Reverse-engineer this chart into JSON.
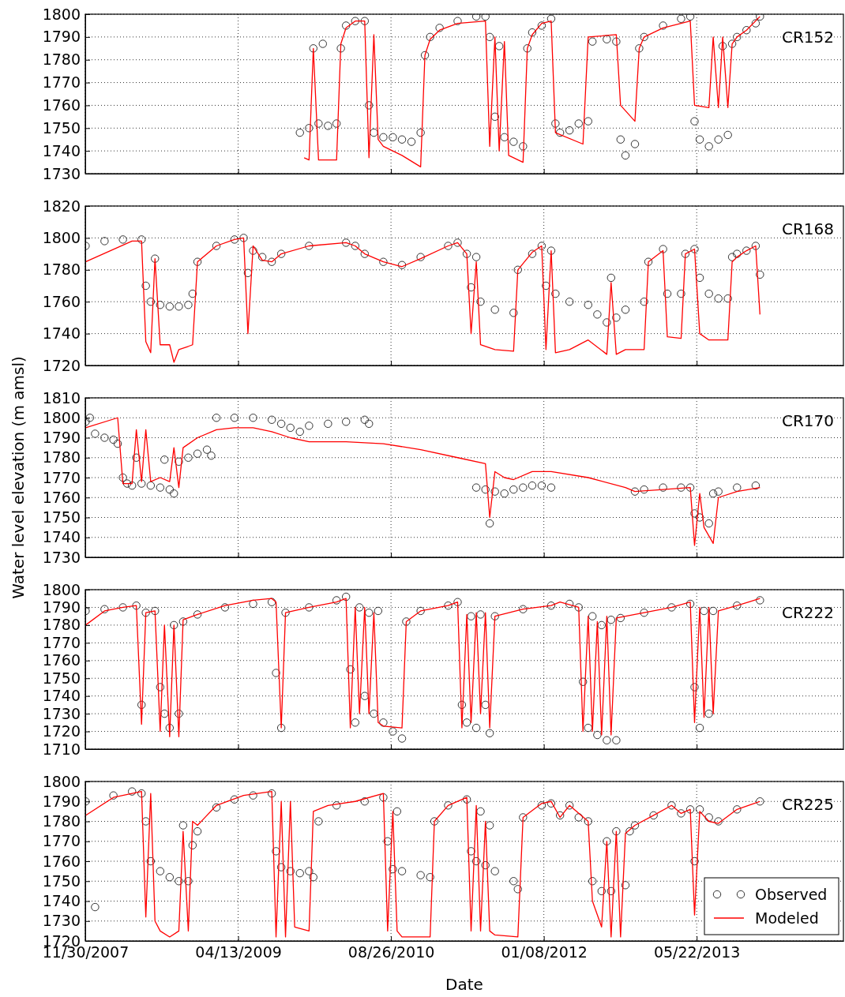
{
  "chart_data": [
    {
      "type": "line",
      "title": "CR152",
      "xlim": [
        "2007-11-30",
        "2014-09-14"
      ],
      "xticks": [
        {
          "value": "2007-11-30",
          "label": null
        },
        {
          "value": "2009-04-13",
          "label": null
        },
        {
          "value": "2010-08-26",
          "label": null
        },
        {
          "value": "2012-01-08",
          "label": null
        },
        {
          "value": "2013-05-22",
          "label": null
        }
      ],
      "ylim": [
        1730,
        1800
      ],
      "yticks": [
        1730,
        1740,
        1750,
        1760,
        1770,
        1780,
        1790,
        1800
      ],
      "grid": true,
      "tick_labels": "y",
      "legend": false,
      "series": [
        {
          "type": "scatter",
          "marker": "circle",
          "color": "#333333",
          "x": [
            "2009-11-01",
            "2009-12-01",
            "2009-12-15",
            "2010-01-01",
            "2010-01-15",
            "2010-02-01",
            "2010-03-01",
            "2010-03-15",
            "2010-04-01",
            "2010-05-01",
            "2010-06-01",
            "2010-06-15",
            "2010-07-01",
            "2010-08-01",
            "2010-09-01",
            "2010-10-01",
            "2010-11-01",
            "2010-12-01",
            "2010-12-15",
            "2011-01-01",
            "2011-02-01",
            "2011-04-01",
            "2011-06-01",
            "2011-07-01",
            "2011-07-15",
            "2011-08-01",
            "2011-08-15",
            "2011-09-01",
            "2011-10-01",
            "2011-11-01",
            "2011-11-15",
            "2011-12-01",
            "2012-01-01",
            "2012-02-01",
            "2012-02-15",
            "2012-03-01",
            "2012-04-01",
            "2012-05-01",
            "2012-06-01",
            "2012-06-15",
            "2012-08-01",
            "2012-09-01",
            "2012-09-15",
            "2012-10-01",
            "2012-11-01",
            "2012-11-15",
            "2012-12-01",
            "2013-02-01",
            "2013-04-01",
            "2013-05-01",
            "2013-05-15",
            "2013-06-01",
            "2013-07-01",
            "2013-08-01",
            "2013-08-15",
            "2013-09-01",
            "2013-09-15",
            "2013-10-01",
            "2013-11-01",
            "2013-12-01",
            "2013-12-15"
          ],
          "values": [
            1748,
            1750,
            1785,
            1752,
            1787,
            1751,
            1752,
            1785,
            1795,
            1797,
            1797,
            1760,
            1748,
            1746,
            1746,
            1745,
            1744,
            1748,
            1782,
            1790,
            1794,
            1797,
            1799,
            1799,
            1790,
            1755,
            1786,
            1746,
            1744,
            1742,
            1785,
            1792,
            1795,
            1798,
            1752,
            1748,
            1749,
            1752,
            1753,
            1788,
            1789,
            1788,
            1745,
            1738,
            1743,
            1785,
            1790,
            1795,
            1798,
            1799,
            1753,
            1745,
            1742,
            1745,
            1786,
            1747,
            1787,
            1790,
            1793,
            1796,
            1799
          ]
        },
        {
          "type": "line",
          "line_style": "solid",
          "color": "#ff0000",
          "x": [
            "2009-11-15",
            "2009-12-01",
            "2009-12-15",
            "2010-01-01",
            "2010-03-01",
            "2010-03-15",
            "2010-04-01",
            "2010-05-01",
            "2010-06-01",
            "2010-06-15",
            "2010-07-01",
            "2010-07-15",
            "2010-08-01",
            "2010-10-01",
            "2010-12-01",
            "2010-12-15",
            "2011-01-01",
            "2011-02-01",
            "2011-04-01",
            "2011-07-01",
            "2011-07-15",
            "2011-08-01",
            "2011-08-15",
            "2011-09-01",
            "2011-09-15",
            "2011-11-01",
            "2011-11-15",
            "2011-12-01",
            "2012-01-01",
            "2012-02-01",
            "2012-02-15",
            "2012-05-15",
            "2012-06-01",
            "2012-09-01",
            "2012-09-15",
            "2012-11-01",
            "2012-11-15",
            "2012-12-01",
            "2013-02-01",
            "2013-05-01",
            "2013-05-15",
            "2013-07-01",
            "2013-07-15",
            "2013-08-01",
            "2013-08-15",
            "2013-09-01",
            "2013-09-15",
            "2013-10-01",
            "2013-11-01",
            "2013-12-15"
          ],
          "values": [
            1737,
            1736,
            1785,
            1736,
            1736,
            1787,
            1794,
            1797,
            1797,
            1737,
            1791,
            1745,
            1742,
            1738,
            1733,
            1782,
            1789,
            1793,
            1796,
            1797,
            1742,
            1790,
            1740,
            1788,
            1738,
            1735,
            1785,
            1791,
            1796,
            1797,
            1748,
            1743,
            1790,
            1791,
            1760,
            1753,
            1785,
            1790,
            1794,
            1797,
            1760,
            1759,
            1790,
            1759,
            1790,
            1759,
            1787,
            1790,
            1793,
            1799
          ]
        }
      ]
    },
    {
      "type": "line",
      "title": "CR168",
      "xlim": [
        "2007-11-30",
        "2014-09-14"
      ],
      "xticks": [
        {
          "value": "2007-11-30",
          "label": null
        },
        {
          "value": "2009-04-13",
          "label": null
        },
        {
          "value": "2010-08-26",
          "label": null
        },
        {
          "value": "2012-01-08",
          "label": null
        },
        {
          "value": "2013-05-22",
          "label": null
        }
      ],
      "ylim": [
        1720,
        1820
      ],
      "yticks": [
        1720,
        1740,
        1760,
        1780,
        1800,
        1820
      ],
      "grid": true,
      "tick_labels": "y",
      "legend": false,
      "series": [
        {
          "type": "scatter",
          "marker": "circle",
          "color": "#333333",
          "x": [
            "2007-12-01",
            "2008-02-01",
            "2008-04-01",
            "2008-06-01",
            "2008-06-15",
            "2008-07-01",
            "2008-07-15",
            "2008-08-01",
            "2008-09-01",
            "2008-10-01",
            "2008-11-01",
            "2008-11-15",
            "2008-12-01",
            "2009-02-01",
            "2009-04-01",
            "2009-05-01",
            "2009-05-15",
            "2009-06-01",
            "2009-07-01",
            "2009-08-01",
            "2009-09-01",
            "2009-12-01",
            "2010-04-01",
            "2010-05-01",
            "2010-06-01",
            "2010-08-01",
            "2010-10-01",
            "2010-12-01",
            "2011-03-01",
            "2011-04-01",
            "2011-05-01",
            "2011-05-15",
            "2011-06-01",
            "2011-06-15",
            "2011-08-01",
            "2011-10-01",
            "2011-10-15",
            "2011-12-01",
            "2012-01-01",
            "2012-01-15",
            "2012-02-01",
            "2012-02-15",
            "2012-04-01",
            "2012-06-01",
            "2012-07-01",
            "2012-08-01",
            "2012-08-15",
            "2012-09-01",
            "2012-10-01",
            "2012-12-01",
            "2012-12-15",
            "2013-02-01",
            "2013-02-15",
            "2013-04-01",
            "2013-04-15",
            "2013-05-15",
            "2013-06-01",
            "2013-07-01",
            "2013-08-01",
            "2013-09-01",
            "2013-09-15",
            "2013-10-01",
            "2013-11-01",
            "2013-12-01",
            "2013-12-15"
          ],
          "values": [
            1795,
            1798,
            1799,
            1799,
            1770,
            1760,
            1787,
            1758,
            1757,
            1757,
            1758,
            1765,
            1785,
            1795,
            1799,
            1800,
            1778,
            1792,
            1788,
            1785,
            1790,
            1795,
            1797,
            1795,
            1790,
            1785,
            1783,
            1788,
            1795,
            1797,
            1790,
            1769,
            1788,
            1760,
            1755,
            1753,
            1780,
            1790,
            1795,
            1770,
            1792,
            1765,
            1760,
            1758,
            1752,
            1747,
            1775,
            1750,
            1755,
            1760,
            1785,
            1793,
            1765,
            1765,
            1790,
            1793,
            1775,
            1765,
            1762,
            1762,
            1788,
            1790,
            1792,
            1795,
            1777
          ]
        },
        {
          "type": "line",
          "line_style": "solid",
          "color": "#ff0000",
          "x": [
            "2007-12-01",
            "2008-05-01",
            "2008-06-01",
            "2008-06-15",
            "2008-07-01",
            "2008-07-15",
            "2008-08-01",
            "2008-09-01",
            "2008-09-15",
            "2008-10-01",
            "2008-11-01",
            "2008-11-15",
            "2008-12-01",
            "2009-02-01",
            "2009-04-01",
            "2009-05-01",
            "2009-05-15",
            "2009-06-01",
            "2009-07-01",
            "2009-08-01",
            "2009-09-01",
            "2009-12-01",
            "2010-04-01",
            "2010-05-01",
            "2010-06-01",
            "2010-08-01",
            "2010-10-01",
            "2010-12-01",
            "2011-03-01",
            "2011-04-01",
            "2011-05-01",
            "2011-05-15",
            "2011-06-01",
            "2011-06-15",
            "2011-08-01",
            "2011-10-01",
            "2011-10-15",
            "2011-12-01",
            "2012-01-01",
            "2012-01-15",
            "2012-02-01",
            "2012-02-15",
            "2012-04-01",
            "2012-06-01",
            "2012-08-01",
            "2012-08-15",
            "2012-09-01",
            "2012-10-01",
            "2012-12-01",
            "2012-12-15",
            "2013-02-01",
            "2013-02-15",
            "2013-04-01",
            "2013-04-15",
            "2013-05-15",
            "2013-06-01",
            "2013-07-01",
            "2013-09-01",
            "2013-09-15",
            "2013-10-01",
            "2013-11-01",
            "2013-12-01",
            "2013-12-15"
          ],
          "values": [
            1785,
            1798,
            1798,
            1735,
            1728,
            1787,
            1733,
            1733,
            1722,
            1730,
            1732,
            1733,
            1785,
            1795,
            1799,
            1800,
            1740,
            1795,
            1786,
            1785,
            1790,
            1795,
            1797,
            1795,
            1790,
            1785,
            1782,
            1787,
            1795,
            1797,
            1790,
            1740,
            1785,
            1733,
            1730,
            1729,
            1780,
            1791,
            1795,
            1730,
            1792,
            1728,
            1730,
            1736,
            1727,
            1772,
            1727,
            1730,
            1730,
            1785,
            1792,
            1738,
            1737,
            1790,
            1793,
            1740,
            1736,
            1736,
            1785,
            1788,
            1792,
            1795,
            1752
          ]
        }
      ]
    },
    {
      "type": "line",
      "title": "CR170",
      "ylabel": "Water level elevation (m amsl)",
      "xlim": [
        "2007-11-30",
        "2014-09-14"
      ],
      "xticks": [
        {
          "value": "2007-11-30",
          "label": null
        },
        {
          "value": "2009-04-13",
          "label": null
        },
        {
          "value": "2010-08-26",
          "label": null
        },
        {
          "value": "2012-01-08",
          "label": null
        },
        {
          "value": "2013-05-22",
          "label": null
        }
      ],
      "ylim": [
        1730,
        1810
      ],
      "yticks": [
        1730,
        1740,
        1750,
        1760,
        1770,
        1780,
        1790,
        1800,
        1810
      ],
      "grid": true,
      "tick_labels": "y",
      "legend": false,
      "series": [
        {
          "type": "scatter",
          "marker": "circle",
          "color": "#333333",
          "x": [
            "2007-12-01",
            "2007-12-15",
            "2008-01-01",
            "2008-02-01",
            "2008-03-01",
            "2008-03-15",
            "2008-04-01",
            "2008-04-15",
            "2008-05-01",
            "2008-05-15",
            "2008-06-01",
            "2008-07-01",
            "2008-08-01",
            "2008-08-15",
            "2008-09-01",
            "2008-09-15",
            "2008-10-01",
            "2008-11-01",
            "2008-12-01",
            "2009-01-01",
            "2009-01-15",
            "2009-02-01",
            "2009-04-01",
            "2009-06-01",
            "2009-08-01",
            "2009-09-01",
            "2009-10-01",
            "2009-11-01",
            "2009-12-01",
            "2010-02-01",
            "2010-04-01",
            "2010-06-01",
            "2010-06-15",
            "2011-06-01",
            "2011-07-01",
            "2011-07-15",
            "2011-08-01",
            "2011-09-01",
            "2011-10-01",
            "2011-11-01",
            "2011-12-01",
            "2012-01-01",
            "2012-02-01",
            "2012-11-01",
            "2012-12-01",
            "2013-02-01",
            "2013-04-01",
            "2013-05-01",
            "2013-05-15",
            "2013-06-01",
            "2013-07-01",
            "2013-07-15",
            "2013-08-01",
            "2013-10-01",
            "2013-12-01"
          ],
          "values": [
            1798,
            1800,
            1792,
            1790,
            1789,
            1787,
            1770,
            1767,
            1766,
            1780,
            1767,
            1766,
            1765,
            1779,
            1764,
            1762,
            1778,
            1780,
            1782,
            1784,
            1781,
            1800,
            1800,
            1800,
            1799,
            1797,
            1795,
            1793,
            1796,
            1797,
            1798,
            1799,
            1797,
            1765,
            1764,
            1747,
            1763,
            1762,
            1764,
            1765,
            1766,
            1766,
            1765,
            1763,
            1764,
            1765,
            1765,
            1765,
            1752,
            1750,
            1747,
            1762,
            1763,
            1765,
            1766
          ]
        },
        {
          "type": "line",
          "line_style": "solid",
          "color": "#ff0000",
          "x": [
            "2007-12-01",
            "2008-03-15",
            "2008-04-01",
            "2008-05-01",
            "2008-05-15",
            "2008-06-01",
            "2008-06-15",
            "2008-07-01",
            "2008-08-01",
            "2008-09-01",
            "2008-09-15",
            "2008-10-01",
            "2008-10-15",
            "2008-12-01",
            "2009-02-01",
            "2009-04-01",
            "2009-06-01",
            "2009-08-01",
            "2009-10-01",
            "2009-12-01",
            "2010-04-01",
            "2010-08-01",
            "2010-12-01",
            "2011-04-01",
            "2011-07-01",
            "2011-07-15",
            "2011-08-01",
            "2011-09-01",
            "2011-10-01",
            "2011-12-01",
            "2012-02-01",
            "2012-06-01",
            "2012-10-01",
            "2012-11-01",
            "2013-02-01",
            "2013-05-01",
            "2013-05-15",
            "2013-06-01",
            "2013-06-15",
            "2013-07-15",
            "2013-08-01",
            "2013-10-01",
            "2013-12-15"
          ],
          "values": [
            1795,
            1800,
            1767,
            1767,
            1794,
            1768,
            1794,
            1768,
            1770,
            1768,
            1785,
            1765,
            1785,
            1790,
            1794,
            1795,
            1795,
            1793,
            1790,
            1788,
            1788,
            1787,
            1784,
            1780,
            1777,
            1750,
            1773,
            1770,
            1769,
            1773,
            1773,
            1770,
            1765,
            1763,
            1764,
            1765,
            1736,
            1762,
            1745,
            1737,
            1760,
            1763,
            1765
          ]
        }
      ]
    },
    {
      "type": "line",
      "title": "CR222",
      "xlim": [
        "2007-11-30",
        "2014-09-14"
      ],
      "xticks": [
        {
          "value": "2007-11-30",
          "label": null
        },
        {
          "value": "2009-04-13",
          "label": null
        },
        {
          "value": "2010-08-26",
          "label": null
        },
        {
          "value": "2012-01-08",
          "label": null
        },
        {
          "value": "2013-05-22",
          "label": null
        }
      ],
      "ylim": [
        1710,
        1800
      ],
      "yticks": [
        1710,
        1720,
        1730,
        1740,
        1750,
        1760,
        1770,
        1780,
        1790,
        1800
      ],
      "grid": true,
      "tick_labels": "y",
      "legend": false,
      "series": [
        {
          "type": "scatter",
          "marker": "circle",
          "color": "#333333",
          "x": [
            "2007-12-01",
            "2008-02-01",
            "2008-04-01",
            "2008-05-15",
            "2008-06-01",
            "2008-06-15",
            "2008-07-15",
            "2008-08-01",
            "2008-08-15",
            "2008-09-01",
            "2008-09-15",
            "2008-10-01",
            "2008-10-15",
            "2008-12-01",
            "2009-03-01",
            "2009-06-01",
            "2009-08-01",
            "2009-08-15",
            "2009-09-01",
            "2009-09-15",
            "2009-12-01",
            "2010-03-01",
            "2010-04-01",
            "2010-04-15",
            "2010-05-01",
            "2010-05-15",
            "2010-06-01",
            "2010-06-15",
            "2010-07-01",
            "2010-07-15",
            "2010-08-01",
            "2010-09-01",
            "2010-10-01",
            "2010-10-15",
            "2010-12-01",
            "2011-03-01",
            "2011-04-01",
            "2011-04-15",
            "2011-05-01",
            "2011-05-15",
            "2011-06-01",
            "2011-06-15",
            "2011-07-01",
            "2011-07-15",
            "2011-08-01",
            "2011-11-01",
            "2012-02-01",
            "2012-04-01",
            "2012-05-01",
            "2012-05-15",
            "2012-06-01",
            "2012-06-15",
            "2012-07-01",
            "2012-07-15",
            "2012-08-01",
            "2012-08-15",
            "2012-09-01",
            "2012-09-15",
            "2012-12-01",
            "2013-03-01",
            "2013-05-01",
            "2013-05-15",
            "2013-06-01",
            "2013-06-15",
            "2013-07-01",
            "2013-07-15",
            "2013-10-01",
            "2013-12-15"
          ],
          "values": [
            1788,
            1789,
            1790,
            1791,
            1735,
            1787,
            1788,
            1745,
            1730,
            1722,
            1780,
            1730,
            1782,
            1786,
            1790,
            1792,
            1793,
            1753,
            1722,
            1787,
            1790,
            1794,
            1796,
            1755,
            1725,
            1790,
            1740,
            1787,
            1730,
            1788,
            1725,
            1720,
            1716,
            1782,
            1788,
            1791,
            1793,
            1735,
            1725,
            1785,
            1722,
            1786,
            1735,
            1719,
            1785,
            1789,
            1791,
            1792,
            1790,
            1748,
            1722,
            1785,
            1718,
            1780,
            1715,
            1783,
            1715,
            1784,
            1787,
            1790,
            1792,
            1745,
            1722,
            1788,
            1730,
            1788,
            1791,
            1794
          ]
        },
        {
          "type": "line",
          "line_style": "solid",
          "color": "#ff0000",
          "x": [
            "2007-12-01",
            "2008-02-01",
            "2008-04-01",
            "2008-05-15",
            "2008-06-01",
            "2008-06-15",
            "2008-07-15",
            "2008-08-01",
            "2008-08-15",
            "2008-09-01",
            "2008-09-15",
            "2008-10-01",
            "2008-10-15",
            "2008-12-01",
            "2009-03-01",
            "2009-06-01",
            "2009-08-01",
            "2009-08-15",
            "2009-09-01",
            "2009-09-15",
            "2009-12-01",
            "2010-03-01",
            "2010-04-01",
            "2010-04-15",
            "2010-05-01",
            "2010-05-15",
            "2010-06-01",
            "2010-06-15",
            "2010-07-01",
            "2010-07-15",
            "2010-08-01",
            "2010-10-01",
            "2010-10-15",
            "2010-12-01",
            "2011-03-01",
            "2011-04-01",
            "2011-04-15",
            "2011-05-01",
            "2011-05-15",
            "2011-06-01",
            "2011-06-15",
            "2011-07-01",
            "2011-07-15",
            "2011-08-01",
            "2011-11-01",
            "2012-02-01",
            "2012-03-01",
            "2012-05-01",
            "2012-05-15",
            "2012-06-01",
            "2012-06-15",
            "2012-07-01",
            "2012-07-15",
            "2012-08-01",
            "2012-08-15",
            "2012-09-01",
            "2012-12-01",
            "2013-03-01",
            "2013-05-01",
            "2013-05-15",
            "2013-06-01",
            "2013-06-15",
            "2013-07-01",
            "2013-07-15",
            "2013-08-01",
            "2013-10-01",
            "2013-12-15"
          ],
          "values": [
            1780,
            1788,
            1790,
            1791,
            1724,
            1787,
            1788,
            1720,
            1780,
            1717,
            1780,
            1717,
            1783,
            1786,
            1791,
            1794,
            1795,
            1793,
            1722,
            1787,
            1790,
            1793,
            1795,
            1722,
            1790,
            1730,
            1790,
            1730,
            1787,
            1725,
            1723,
            1722,
            1782,
            1788,
            1791,
            1793,
            1722,
            1786,
            1725,
            1787,
            1730,
            1787,
            1722,
            1785,
            1789,
            1791,
            1793,
            1790,
            1720,
            1785,
            1720,
            1782,
            1718,
            1785,
            1718,
            1784,
            1787,
            1790,
            1793,
            1725,
            1790,
            1728,
            1790,
            1730,
            1788,
            1791,
            1795
          ]
        }
      ]
    },
    {
      "type": "line",
      "title": "CR225",
      "xlabel": "Date",
      "xlim": [
        "2007-11-30",
        "2014-09-14"
      ],
      "xticks": [
        {
          "value": "2007-11-30",
          "label": "11/30/2007"
        },
        {
          "value": "2009-04-13",
          "label": "04/13/2009"
        },
        {
          "value": "2010-08-26",
          "label": "08/26/2010"
        },
        {
          "value": "2012-01-08",
          "label": "01/08/2012"
        },
        {
          "value": "2013-05-22",
          "label": "05/22/2013"
        }
      ],
      "ylim": [
        1720,
        1800
      ],
      "yticks": [
        1720,
        1730,
        1740,
        1750,
        1760,
        1770,
        1780,
        1790,
        1800
      ],
      "grid": true,
      "legend": "bottom right",
      "series": [
        {
          "name": "Observed",
          "type": "scatter",
          "marker": "circle",
          "color": "#333333",
          "x": [
            "2007-12-01",
            "2008-01-01",
            "2008-03-01",
            "2008-05-01",
            "2008-06-01",
            "2008-06-15",
            "2008-07-01",
            "2008-08-01",
            "2008-09-01",
            "2008-10-01",
            "2008-10-15",
            "2008-11-01",
            "2008-11-15",
            "2008-12-01",
            "2009-02-01",
            "2009-04-01",
            "2009-06-01",
            "2009-08-01",
            "2009-08-15",
            "2009-09-01",
            "2009-10-01",
            "2009-11-01",
            "2009-12-01",
            "2009-12-15",
            "2010-01-01",
            "2010-03-01",
            "2010-06-01",
            "2010-08-01",
            "2010-08-15",
            "2010-09-01",
            "2010-09-15",
            "2010-10-01",
            "2010-12-01",
            "2011-01-01",
            "2011-01-15",
            "2011-03-01",
            "2011-05-01",
            "2011-05-15",
            "2011-06-01",
            "2011-06-15",
            "2011-07-01",
            "2011-07-15",
            "2011-08-01",
            "2011-10-01",
            "2011-10-15",
            "2011-11-01",
            "2012-01-01",
            "2012-02-01",
            "2012-03-01",
            "2012-04-01",
            "2012-05-01",
            "2012-06-01",
            "2012-06-15",
            "2012-07-15",
            "2012-08-01",
            "2012-08-15",
            "2012-09-01",
            "2012-10-01",
            "2012-10-15",
            "2012-11-01",
            "2013-01-01",
            "2013-03-01",
            "2013-04-01",
            "2013-05-01",
            "2013-05-15",
            "2013-06-01",
            "2013-07-01",
            "2013-08-01",
            "2013-10-01",
            "2013-12-15"
          ],
          "values": [
            1790,
            1737,
            1793,
            1795,
            1794,
            1780,
            1760,
            1755,
            1752,
            1750,
            1778,
            1750,
            1768,
            1775,
            1787,
            1791,
            1793,
            1794,
            1765,
            1757,
            1755,
            1754,
            1755,
            1752,
            1780,
            1788,
            1790,
            1792,
            1770,
            1756,
            1785,
            1755,
            1753,
            1752,
            1780,
            1788,
            1791,
            1765,
            1760,
            1785,
            1758,
            1778,
            1755,
            1750,
            1746,
            1782,
            1788,
            1789,
            1783,
            1788,
            1782,
            1780,
            1750,
            1745,
            1770,
            1745,
            1775,
            1748,
            1775,
            1778,
            1783,
            1788,
            1784,
            1786,
            1760,
            1786,
            1782,
            1780,
            1786,
            1790
          ]
        },
        {
          "name": "Modeled",
          "type": "line",
          "line_style": "solid",
          "color": "#ff0000",
          "x": [
            "2007-12-01",
            "2008-03-01",
            "2008-06-01",
            "2008-06-15",
            "2008-07-01",
            "2008-07-15",
            "2008-08-01",
            "2008-09-01",
            "2008-10-01",
            "2008-10-15",
            "2008-11-01",
            "2008-11-15",
            "2008-12-01",
            "2009-02-01",
            "2009-05-01",
            "2009-08-01",
            "2009-08-15",
            "2009-09-01",
            "2009-09-15",
            "2009-10-01",
            "2009-10-15",
            "2009-12-01",
            "2009-12-15",
            "2010-02-01",
            "2010-05-01",
            "2010-08-01",
            "2010-08-15",
            "2010-09-01",
            "2010-09-15",
            "2010-10-01",
            "2011-01-01",
            "2011-01-15",
            "2011-03-01",
            "2011-05-01",
            "2011-05-15",
            "2011-06-01",
            "2011-06-15",
            "2011-07-01",
            "2011-07-15",
            "2011-08-01",
            "2011-10-15",
            "2011-11-01",
            "2012-01-01",
            "2012-02-01",
            "2012-03-01",
            "2012-04-01",
            "2012-06-01",
            "2012-06-15",
            "2012-07-15",
            "2012-08-01",
            "2012-08-15",
            "2012-09-01",
            "2012-09-15",
            "2012-10-01",
            "2012-11-01",
            "2013-01-01",
            "2013-03-01",
            "2013-04-01",
            "2013-05-01",
            "2013-05-15",
            "2013-06-01",
            "2013-07-01",
            "2013-08-01",
            "2013-10-01",
            "2013-12-15"
          ],
          "values": [
            1783,
            1792,
            1795,
            1732,
            1794,
            1730,
            1725,
            1722,
            1725,
            1775,
            1725,
            1780,
            1778,
            1788,
            1793,
            1795,
            1722,
            1790,
            1722,
            1790,
            1727,
            1725,
            1785,
            1788,
            1790,
            1794,
            1725,
            1785,
            1725,
            1722,
            1722,
            1780,
            1788,
            1792,
            1725,
            1788,
            1725,
            1780,
            1725,
            1723,
            1722,
            1782,
            1789,
            1790,
            1782,
            1788,
            1780,
            1740,
            1727,
            1770,
            1722,
            1775,
            1722,
            1774,
            1778,
            1783,
            1788,
            1784,
            1786,
            1733,
            1785,
            1780,
            1779,
            1786,
            1790
          ]
        }
      ]
    }
  ]
}
